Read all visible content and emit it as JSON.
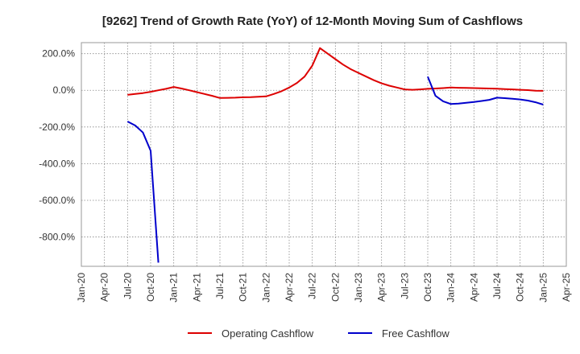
{
  "chart_data": {
    "type": "line",
    "title": "[9262]  Trend of Growth Rate (YoY) of 12-Month Moving Sum of Cashflows",
    "xlabel": "",
    "ylabel": "",
    "x_ticks": [
      "Jan-20",
      "Apr-20",
      "Jul-20",
      "Oct-20",
      "Jan-21",
      "Apr-21",
      "Jul-21",
      "Oct-21",
      "Jan-22",
      "Apr-22",
      "Jul-22",
      "Oct-22",
      "Jan-23",
      "Apr-23",
      "Jul-23",
      "Oct-23",
      "Jan-24",
      "Apr-24",
      "Jul-24",
      "Oct-24",
      "Jan-25",
      "Apr-25"
    ],
    "y_ticks": [
      200,
      0,
      -200,
      -400,
      -600,
      -800
    ],
    "y_tick_labels": [
      "200.0%",
      "0.0%",
      "-200.0%",
      "-400.0%",
      "-600.0%",
      "-800.0%"
    ],
    "ylim": [
      -960,
      260
    ],
    "grid": true,
    "legend_position": "bottom",
    "series": [
      {
        "name": "Operating Cashflow",
        "color": "#dd0000",
        "points": [
          [
            "Jul-20",
            -25
          ],
          [
            "Aug-20",
            -20
          ],
          [
            "Sep-20",
            -15
          ],
          [
            "Oct-20",
            -8
          ],
          [
            "Nov-20",
            0
          ],
          [
            "Dec-20",
            8
          ],
          [
            "Jan-21",
            18
          ],
          [
            "Feb-21",
            10
          ],
          [
            "Mar-21",
            0
          ],
          [
            "Apr-21",
            -10
          ],
          [
            "May-21",
            -20
          ],
          [
            "Jun-21",
            -30
          ],
          [
            "Jul-21",
            -42
          ],
          [
            "Aug-21",
            -41
          ],
          [
            "Sep-21",
            -40
          ],
          [
            "Oct-21",
            -38
          ],
          [
            "Nov-21",
            -37
          ],
          [
            "Dec-21",
            -35
          ],
          [
            "Jan-22",
            -33
          ],
          [
            "Feb-22",
            -20
          ],
          [
            "Mar-22",
            -5
          ],
          [
            "Apr-22",
            15
          ],
          [
            "May-22",
            40
          ],
          [
            "Jun-22",
            75
          ],
          [
            "Jul-22",
            135
          ],
          [
            "Aug-22",
            230
          ],
          [
            "Sep-22",
            200
          ],
          [
            "Oct-22",
            170
          ],
          [
            "Nov-22",
            140
          ],
          [
            "Dec-22",
            115
          ],
          [
            "Jan-23",
            95
          ],
          [
            "Feb-23",
            75
          ],
          [
            "Mar-23",
            55
          ],
          [
            "Apr-23",
            38
          ],
          [
            "May-23",
            25
          ],
          [
            "Jun-23",
            15
          ],
          [
            "Jul-23",
            5
          ],
          [
            "Aug-23",
            3
          ],
          [
            "Sep-23",
            5
          ],
          [
            "Oct-23",
            8
          ],
          [
            "Nov-23",
            10
          ],
          [
            "Dec-23",
            12
          ],
          [
            "Jan-24",
            15
          ],
          [
            "Feb-24",
            14
          ],
          [
            "Mar-24",
            13
          ],
          [
            "Apr-24",
            12
          ],
          [
            "May-24",
            11
          ],
          [
            "Jun-24",
            10
          ],
          [
            "Jul-24",
            9
          ],
          [
            "Aug-24",
            7
          ],
          [
            "Sep-24",
            5
          ],
          [
            "Oct-24",
            3
          ],
          [
            "Nov-24",
            1
          ],
          [
            "Dec-24",
            -2
          ],
          [
            "Jan-25",
            -3
          ]
        ]
      },
      {
        "name": "Free Cashflow",
        "color": "#0000cc",
        "segments": [
          [
            [
              "Jul-20",
              -170
            ],
            [
              "Aug-20",
              -192
            ],
            [
              "Sep-20",
              -230
            ],
            [
              "Oct-20",
              -330
            ],
            [
              "Nov-20",
              -940
            ]
          ],
          [
            [
              "Oct-23",
              75
            ],
            [
              "Nov-23",
              -30
            ],
            [
              "Dec-23",
              -60
            ],
            [
              "Jan-24",
              -75
            ],
            [
              "Feb-24",
              -72
            ],
            [
              "Mar-24",
              -68
            ],
            [
              "Apr-24",
              -64
            ],
            [
              "May-24",
              -58
            ],
            [
              "Jun-24",
              -52
            ],
            [
              "Jul-24",
              -40
            ],
            [
              "Aug-24",
              -43
            ],
            [
              "Sep-24",
              -46
            ],
            [
              "Oct-24",
              -50
            ],
            [
              "Nov-24",
              -56
            ],
            [
              "Dec-24",
              -65
            ],
            [
              "Jan-25",
              -78
            ]
          ]
        ]
      }
    ]
  }
}
